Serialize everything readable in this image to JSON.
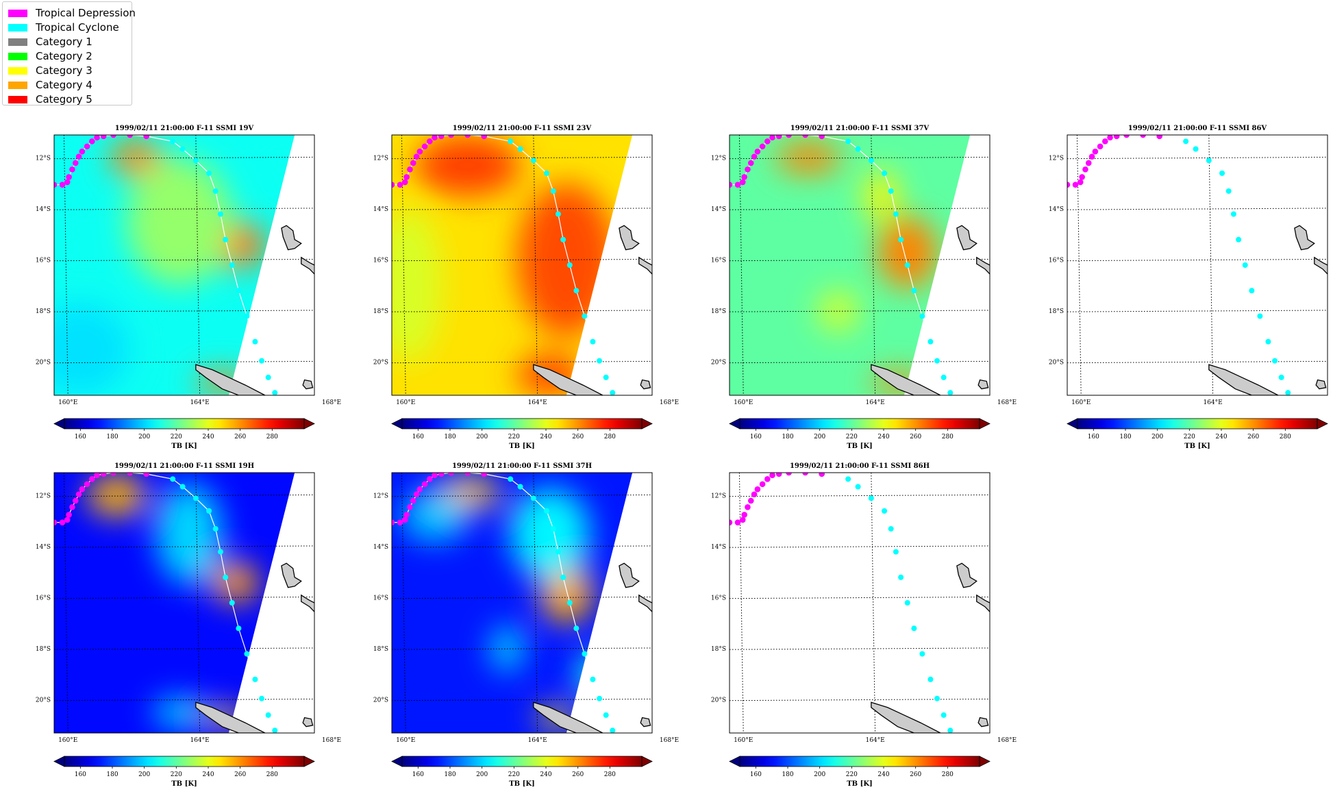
{
  "legend": {
    "items": [
      {
        "label": "Tropical Depression",
        "color": "#ff00ff"
      },
      {
        "label": "Tropical Cyclone",
        "color": "#00ffff"
      },
      {
        "label": "Category 1",
        "color": "#808080"
      },
      {
        "label": "Category 2",
        "color": "#00ff00"
      },
      {
        "label": "Category 3",
        "color": "#ffff00"
      },
      {
        "label": "Category 4",
        "color": "#ffa500"
      },
      {
        "label": "Category 5",
        "color": "#ff0000"
      }
    ]
  },
  "map_extent": {
    "lon": [
      159.7,
      167.6
    ],
    "lat": [
      -21.3,
      -11.1
    ]
  },
  "gridlines": {
    "lon": [
      160,
      164,
      168
    ],
    "lat": [
      -12,
      -14,
      -16,
      -18,
      -20
    ]
  },
  "lon_tick_labels": [
    "160°E",
    "164°E",
    "168°E"
  ],
  "lat_tick_labels": [
    "12°S",
    "14°S",
    "16°S",
    "18°S",
    "20°S"
  ],
  "colorbar": {
    "ticks": [
      "160",
      "180",
      "200",
      "220",
      "240",
      "260",
      "280"
    ],
    "label": "TB [K]",
    "range": [
      150,
      300
    ]
  },
  "panels": [
    {
      "title": "1999/02/11 21:00:00  F-11 SSMI 19V",
      "channel": "19V",
      "data": true
    },
    {
      "title": "1999/02/11 21:00:00  F-11 SSMI 23V",
      "channel": "23V",
      "data": true
    },
    {
      "title": "1999/02/11 21:00:00  F-11 SSMI 37V",
      "channel": "37V",
      "data": true
    },
    {
      "title": "1999/02/11 21:00:00  F-11 SSMI 86V",
      "channel": "86V",
      "data": false
    },
    {
      "title": "1999/02/11 21:00:00  F-11 SSMI 19H",
      "channel": "19H",
      "data": true
    },
    {
      "title": "1999/02/11 21:00:00  F-11 SSMI 37H",
      "channel": "37H",
      "data": true
    },
    {
      "title": "1999/02/11 21:00:00  F-11 SSMI 86H",
      "channel": "86H",
      "data": false
    }
  ],
  "track": {
    "depression": [
      [
        159.7,
        -13.05
      ],
      [
        159.95,
        -13.05
      ],
      [
        160.1,
        -12.95
      ],
      [
        160.15,
        -12.75
      ],
      [
        160.25,
        -12.45
      ],
      [
        160.35,
        -12.2
      ],
      [
        160.45,
        -11.95
      ],
      [
        160.55,
        -11.75
      ],
      [
        160.7,
        -11.55
      ],
      [
        160.85,
        -11.35
      ],
      [
        161.0,
        -11.2
      ],
      [
        161.2,
        -11.15
      ],
      [
        161.5,
        -11.1
      ],
      [
        162.0,
        -11.1
      ],
      [
        162.5,
        -11.15
      ]
    ],
    "cyclone": [
      [
        163.3,
        -11.35
      ],
      [
        163.6,
        -11.65
      ],
      [
        164.0,
        -12.1
      ],
      [
        164.4,
        -12.6
      ],
      [
        164.6,
        -13.3
      ],
      [
        164.75,
        -14.2
      ],
      [
        164.9,
        -15.2
      ],
      [
        165.1,
        -16.2
      ],
      [
        165.3,
        -17.2
      ],
      [
        165.55,
        -18.2
      ],
      [
        165.8,
        -19.2
      ],
      [
        166.0,
        -19.95
      ],
      [
        166.2,
        -20.6
      ],
      [
        166.4,
        -21.2
      ]
    ]
  },
  "swath_east_edge": [
    [
      167.0,
      -11.1
    ],
    [
      165.0,
      -21.3
    ]
  ],
  "islands": {
    "island_north": [
      [
        166.75,
        -14.65
      ],
      [
        166.95,
        -14.85
      ],
      [
        167.0,
        -15.2
      ],
      [
        167.2,
        -15.35
      ],
      [
        167.0,
        -15.55
      ],
      [
        166.8,
        -15.6
      ],
      [
        166.65,
        -15.1
      ],
      [
        166.6,
        -14.75
      ]
    ],
    "island_mid": [
      [
        167.2,
        -15.9
      ],
      [
        167.45,
        -16.1
      ],
      [
        167.75,
        -16.3
      ],
      [
        167.85,
        -16.5
      ],
      [
        167.6,
        -16.55
      ],
      [
        167.45,
        -16.35
      ],
      [
        167.2,
        -16.15
      ]
    ],
    "island_small": [
      [
        167.3,
        -20.7
      ],
      [
        167.5,
        -20.75
      ],
      [
        167.55,
        -21.0
      ],
      [
        167.35,
        -21.05
      ],
      [
        167.25,
        -20.9
      ]
    ],
    "new_caledonia": [
      [
        164.0,
        -20.1
      ],
      [
        164.5,
        -20.3
      ],
      [
        165.0,
        -20.6
      ],
      [
        165.5,
        -20.9
      ],
      [
        166.1,
        -21.3
      ],
      [
        165.3,
        -21.3
      ],
      [
        164.8,
        -21.05
      ],
      [
        164.3,
        -20.6
      ],
      [
        164.0,
        -20.3
      ]
    ]
  },
  "tb_sources": {
    "19V": {
      "bg": 208,
      "fields": [
        {
          "lon": 162.2,
          "lat": -12.0,
          "rx": 0.8,
          "ry": 0.7,
          "tb": 262
        },
        {
          "lon": 165.3,
          "lat": -15.4,
          "rx": 0.8,
          "ry": 0.9,
          "tb": 264
        },
        {
          "lon": 164.8,
          "lat": -20.8,
          "rx": 0.8,
          "ry": 0.4,
          "tb": 262
        },
        {
          "lon": 163.5,
          "lat": -14.5,
          "rx": 1.6,
          "ry": 2.5,
          "tb": 228
        },
        {
          "lon": 160.5,
          "lat": -19.5,
          "rx": 1.5,
          "ry": 1.8,
          "tb": 202
        }
      ]
    },
    "23V": {
      "bg": 248,
      "fields": [
        {
          "lon": 162.0,
          "lat": -12.3,
          "rx": 1.6,
          "ry": 1.2,
          "tb": 272
        },
        {
          "lon": 165.0,
          "lat": -16.0,
          "rx": 1.5,
          "ry": 3.0,
          "tb": 270
        },
        {
          "lon": 164.5,
          "lat": -20.5,
          "rx": 1.0,
          "ry": 0.8,
          "tb": 272
        },
        {
          "lon": 160.2,
          "lat": -17.0,
          "rx": 1.0,
          "ry": 3.0,
          "tb": 238
        }
      ]
    },
    "37V": {
      "bg": 220,
      "fields": [
        {
          "lon": 162.1,
          "lat": -12.0,
          "rx": 1.0,
          "ry": 0.6,
          "tb": 262
        },
        {
          "lon": 165.1,
          "lat": -15.7,
          "rx": 0.9,
          "ry": 1.4,
          "tb": 262
        },
        {
          "lon": 164.8,
          "lat": -20.8,
          "rx": 0.8,
          "ry": 0.4,
          "tb": 262
        },
        {
          "lon": 164.3,
          "lat": -13.5,
          "rx": 0.5,
          "ry": 1.0,
          "tb": 245
        },
        {
          "lon": 163.0,
          "lat": -18.0,
          "rx": 0.6,
          "ry": 0.8,
          "tb": 238
        }
      ]
    },
    "19H": {
      "bg": 170,
      "fields": [
        {
          "lon": 161.6,
          "lat": -12.0,
          "rx": 0.9,
          "ry": 0.8,
          "tb": 255
        },
        {
          "lon": 165.2,
          "lat": -15.4,
          "rx": 0.7,
          "ry": 0.8,
          "tb": 258
        },
        {
          "lon": 164.9,
          "lat": -20.7,
          "rx": 0.6,
          "ry": 0.4,
          "tb": 252
        },
        {
          "lon": 163.8,
          "lat": -13.5,
          "rx": 1.0,
          "ry": 2.0,
          "tb": 200
        },
        {
          "lon": 163.5,
          "lat": -20.5,
          "rx": 0.8,
          "ry": 0.6,
          "tb": 200
        }
      ]
    },
    "37H": {
      "bg": 172,
      "fields": [
        {
          "lon": 162.0,
          "lat": -11.9,
          "rx": 1.0,
          "ry": 0.6,
          "tb": 252
        },
        {
          "lon": 165.0,
          "lat": -15.8,
          "rx": 0.8,
          "ry": 1.2,
          "tb": 256
        },
        {
          "lon": 164.7,
          "lat": -20.7,
          "rx": 0.6,
          "ry": 0.4,
          "tb": 250
        },
        {
          "lon": 164.5,
          "lat": -13.5,
          "rx": 1.2,
          "ry": 1.8,
          "tb": 205
        },
        {
          "lon": 163.2,
          "lat": -18.0,
          "rx": 0.5,
          "ry": 0.9,
          "tb": 200
        },
        {
          "lon": 161.0,
          "lat": -12.8,
          "rx": 1.0,
          "ry": 1.0,
          "tb": 198
        },
        {
          "lon": 166.0,
          "lat": -19.0,
          "rx": 0.7,
          "ry": 0.8,
          "tb": 210
        }
      ]
    }
  }
}
